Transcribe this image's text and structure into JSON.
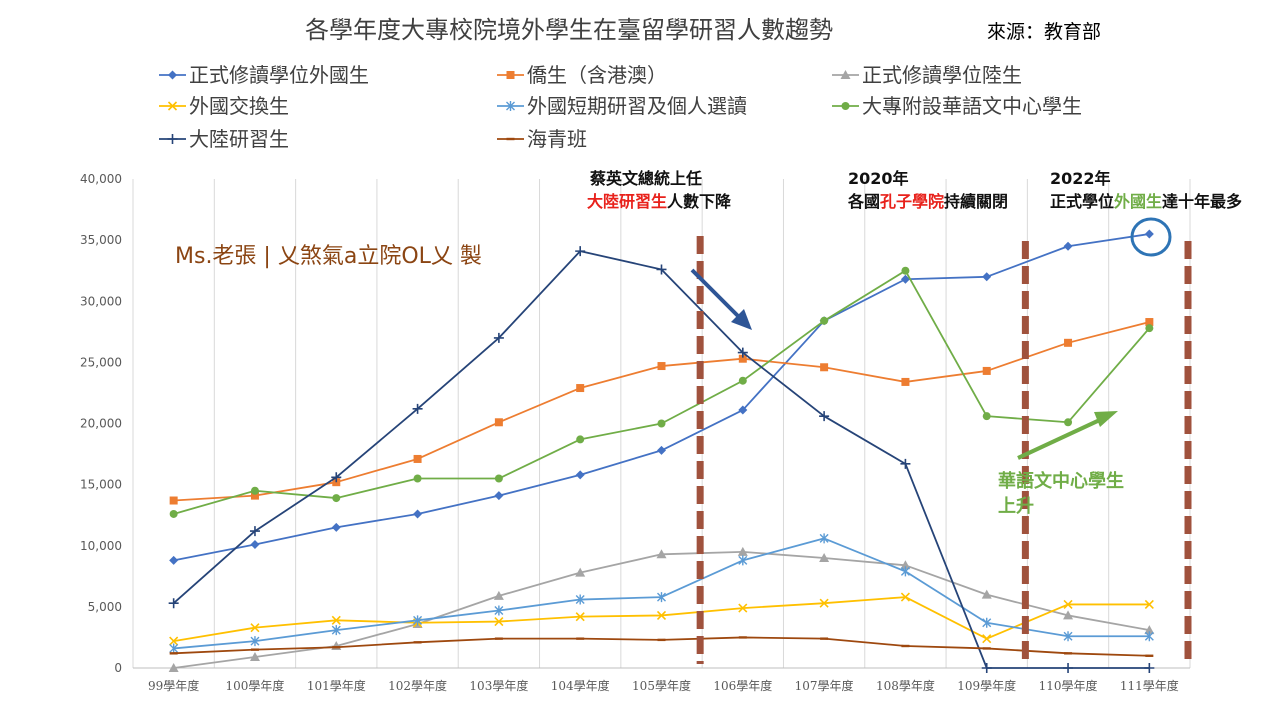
{
  "chart_data": {
    "type": "line",
    "title": "各學年度大專校院境外學生在臺留學研習人數趨勢",
    "source": "來源：教育部",
    "watermark": "Ms.老張 | 乂煞氣a立院OL乂 製",
    "xlabel": "",
    "ylabel": "",
    "ylim": [
      0,
      40000
    ],
    "yticks": [
      "0",
      "5,000",
      "10,000",
      "15,000",
      "20,000",
      "25,000",
      "30,000",
      "35,000",
      "40,000"
    ],
    "grid": "vertical",
    "legend_position": "top",
    "categories": [
      "99學年度",
      "100學年度",
      "101學年度",
      "102學年度",
      "103學年度",
      "104學年度",
      "105學年度",
      "106學年度",
      "107學年度",
      "108學年度",
      "109學年度",
      "110學年度",
      "111學年度"
    ],
    "series": [
      {
        "name": "正式修讀學位外國生",
        "color": "#4472c4",
        "marker": "diamond",
        "values": [
          8800,
          10100,
          11500,
          12600,
          14100,
          15800,
          17800,
          21100,
          28400,
          31800,
          32000,
          34500,
          35500
        ]
      },
      {
        "name": "僑生（含港澳）",
        "color": "#ed7d31",
        "marker": "square",
        "values": [
          13700,
          14100,
          15200,
          17100,
          20100,
          22900,
          24700,
          25300,
          24600,
          23400,
          24300,
          26600,
          28300
        ]
      },
      {
        "name": "正式修讀學位陸生",
        "color": "#a5a5a5",
        "marker": "triangle",
        "values": [
          0,
          900,
          1800,
          3600,
          5900,
          7800,
          9300,
          9500,
          9000,
          8400,
          6000,
          4300,
          3100
        ]
      },
      {
        "name": "外國交換生",
        "color": "#ffc000",
        "marker": "x",
        "values": [
          2200,
          3300,
          3900,
          3700,
          3800,
          4200,
          4300,
          4900,
          5300,
          5800,
          2400,
          5200,
          5200
        ]
      },
      {
        "name": "外國短期研習及個人選讀",
        "color": "#5b9bd5",
        "marker": "star",
        "values": [
          1600,
          2200,
          3100,
          3900,
          4700,
          5600,
          5800,
          8800,
          10600,
          7900,
          3700,
          2600,
          2600
        ]
      },
      {
        "name": "大專附設華語文中心學生",
        "color": "#70ad47",
        "marker": "circle",
        "values": [
          12600,
          14500,
          13900,
          15500,
          15500,
          18700,
          20000,
          23500,
          28400,
          32500,
          20600,
          20100,
          27800
        ]
      },
      {
        "name": "大陸研習生",
        "color": "#264478",
        "marker": "plus",
        "values": [
          5300,
          11200,
          15600,
          21200,
          27000,
          34100,
          32600,
          25800,
          20600,
          16700,
          0,
          0,
          0
        ]
      },
      {
        "name": "海青班",
        "color": "#9e480e",
        "marker": "dash",
        "values": [
          1200,
          1500,
          1700,
          2100,
          2400,
          2400,
          2300,
          2500,
          2400,
          1800,
          1600,
          1200,
          1000
        ]
      }
    ],
    "annotations": {
      "a1_line1": "蔡英文總統上任",
      "a1_red": "大陸研習生",
      "a1_rest": "人數下降",
      "a2_year": "2020年",
      "a2_pre": "各國",
      "a2_red": "孔子學院",
      "a2_post": "持續關閉",
      "a3_year": "2022年",
      "a3_pre": "正式學位",
      "a3_green": "外國生",
      "a3_post": "達十年最多",
      "green_note_l1": "華語文中心學生",
      "green_note_l2": "上升"
    },
    "marker_lines_at": [
      "105學年度",
      "109學年度",
      "111學年度"
    ],
    "colors": {
      "marker_line": "#a0523d",
      "arrow_down": "#2e5596",
      "arrow_up": "#70ad47",
      "highlight_circle": "#2e74b5"
    }
  }
}
